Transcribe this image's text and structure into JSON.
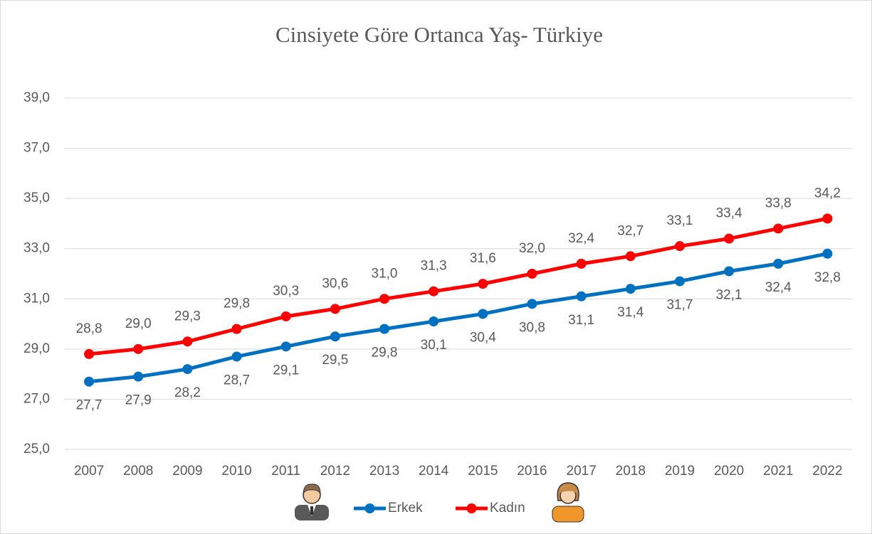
{
  "chart_data": {
    "type": "line",
    "title": "Cinsiyete Göre Ortanca Yaş- Türkiye",
    "categories": [
      "2007",
      "2008",
      "2009",
      "2010",
      "2011",
      "2012",
      "2013",
      "2014",
      "2015",
      "2016",
      "2017",
      "2018",
      "2019",
      "2020",
      "2021",
      "2022"
    ],
    "series": [
      {
        "name": "Erkek",
        "color": "#0070c0",
        "values": [
          27.7,
          27.9,
          28.2,
          28.7,
          29.1,
          29.5,
          29.8,
          30.1,
          30.4,
          30.8,
          31.1,
          31.4,
          31.7,
          32.1,
          32.4,
          32.8
        ],
        "value_labels": [
          "27,7",
          "27,9",
          "28,2",
          "28,7",
          "29,1",
          "29,5",
          "29,8",
          "30,1",
          "30,4",
          "30,8",
          "31,1",
          "31,4",
          "31,7",
          "32,1",
          "32,4",
          "32,8"
        ]
      },
      {
        "name": "Kadın",
        "color": "#ff0000",
        "values": [
          28.8,
          29.0,
          29.3,
          29.8,
          30.3,
          30.6,
          31.0,
          31.3,
          31.6,
          32.0,
          32.4,
          32.7,
          33.1,
          33.4,
          33.8,
          34.2
        ],
        "value_labels": [
          "28,8",
          "29,0",
          "29,3",
          "29,8",
          "30,3",
          "30,6",
          "31,0",
          "31,3",
          "31,6",
          "32,0",
          "32,4",
          "32,7",
          "33,1",
          "33,4",
          "33,8",
          "34,2"
        ]
      }
    ],
    "ylim": [
      25,
      39
    ],
    "yticks": [
      {
        "value": 25,
        "label": "25,0"
      },
      {
        "value": 27,
        "label": "27,0"
      },
      {
        "value": 29,
        "label": "29,0"
      },
      {
        "value": 31,
        "label": "31,0"
      },
      {
        "value": 33,
        "label": "33,0"
      },
      {
        "value": 35,
        "label": "35,0"
      },
      {
        "value": 37,
        "label": "37,0"
      },
      {
        "value": 39,
        "label": "39,0"
      }
    ],
    "grid": true
  }
}
